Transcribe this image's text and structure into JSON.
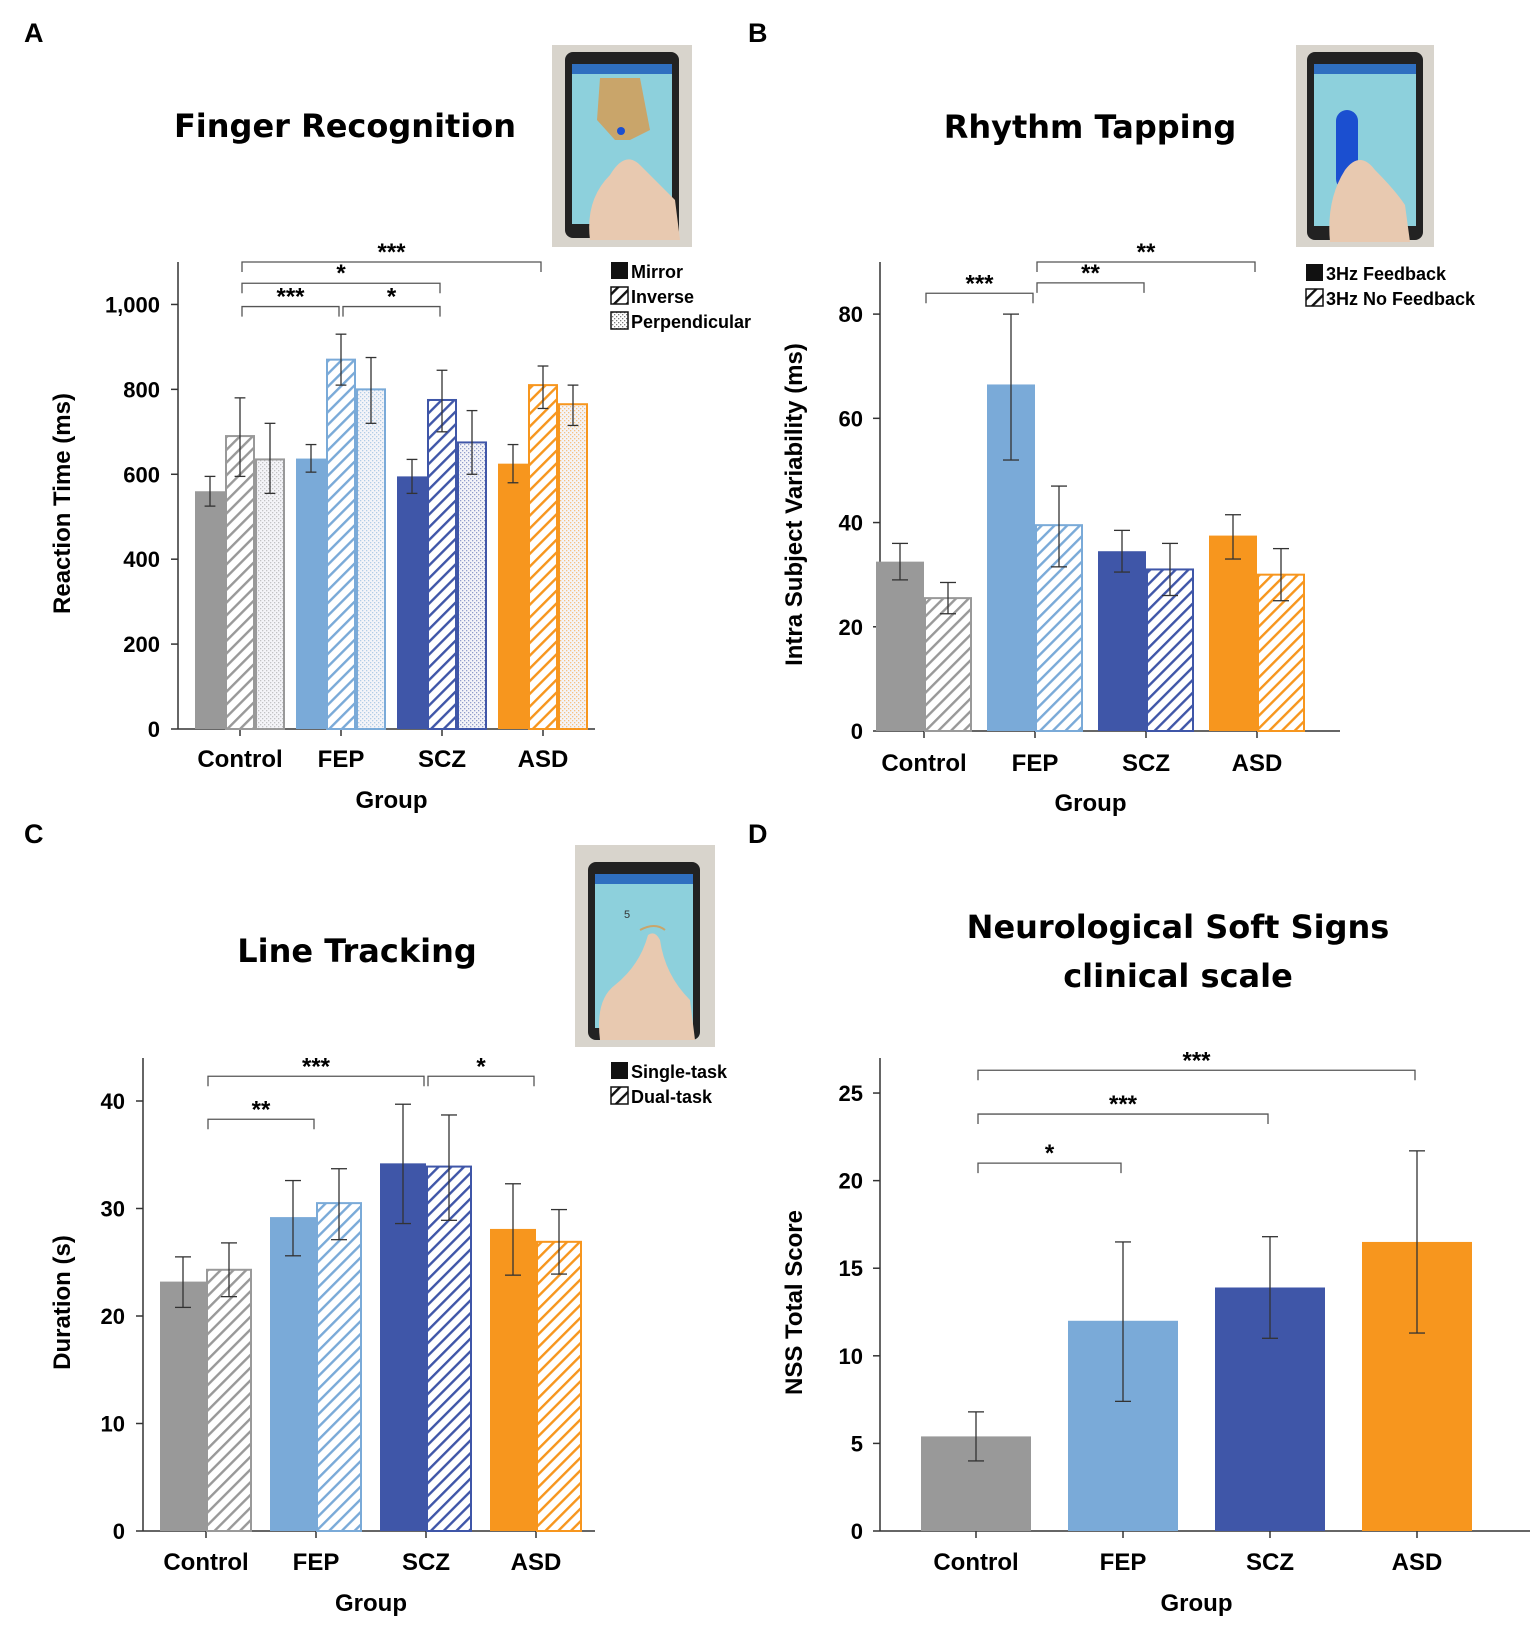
{
  "colors": {
    "Control": "#999999",
    "FEP": "#7aaad8",
    "SCZ": "#3f56a8",
    "ASD": "#f7961e"
  },
  "chart_data": [
    {
      "panel": "A",
      "type": "bar",
      "title": [
        "Finger Recognition"
      ],
      "xlabel": "Group",
      "ylabel": "Reaction Time (ms)",
      "ylim": [
        0,
        1100
      ],
      "yticks": [
        0,
        200,
        400,
        600,
        800,
        1000
      ],
      "ytick_labels": [
        "0",
        "200",
        "400",
        "600",
        "800",
        "1,000"
      ],
      "categories": [
        "Control",
        "FEP",
        "SCZ",
        "ASD"
      ],
      "series": [
        {
          "name": "Mirror",
          "pattern": "solid",
          "values": [
            560,
            637,
            595,
            625
          ],
          "err_low": [
            525,
            605,
            555,
            580
          ],
          "err_high": [
            595,
            670,
            635,
            670
          ]
        },
        {
          "name": "Inverse",
          "pattern": "hatch",
          "values": [
            690,
            870,
            775,
            810
          ],
          "err_low": [
            595,
            810,
            700,
            755
          ],
          "err_high": [
            780,
            930,
            845,
            855
          ]
        },
        {
          "name": "Perpendicular",
          "pattern": "dots",
          "values": [
            635,
            800,
            675,
            765
          ],
          "err_low": [
            555,
            720,
            600,
            715
          ],
          "err_high": [
            720,
            875,
            750,
            810
          ]
        }
      ],
      "significance": [
        {
          "label": "***",
          "from": 0,
          "to": 3,
          "y": 1100
        },
        {
          "label": "*",
          "from": 0,
          "to": 2,
          "y": 1050
        },
        {
          "label": "***",
          "from": 0,
          "to": 1,
          "y": 995
        },
        {
          "label": "*",
          "from": 1,
          "to": 2,
          "y": 995
        }
      ]
    },
    {
      "panel": "B",
      "type": "bar",
      "title": [
        "Rhythm Tapping"
      ],
      "xlabel": "Group",
      "ylabel": "Intra Subject Variability (ms)",
      "ylim": [
        0,
        90
      ],
      "yticks": [
        0,
        20,
        40,
        60,
        80
      ],
      "ytick_labels": [
        "0",
        "20",
        "40",
        "60",
        "80"
      ],
      "categories": [
        "Control",
        "FEP",
        "SCZ",
        "ASD"
      ],
      "series": [
        {
          "name": "3Hz Feedback",
          "pattern": "solid",
          "values": [
            32.5,
            66.5,
            34.5,
            37.5
          ],
          "err_low": [
            29,
            52,
            30.5,
            33
          ],
          "err_high": [
            36,
            80,
            38.5,
            41.5
          ]
        },
        {
          "name": "3Hz No Feedback",
          "pattern": "hatch",
          "values": [
            25.5,
            39.5,
            31,
            30
          ],
          "err_low": [
            22.5,
            31.5,
            26,
            25
          ],
          "err_high": [
            28.5,
            47,
            36,
            35
          ]
        }
      ],
      "significance": [
        {
          "label": "**",
          "from": 1,
          "to": 3,
          "y": 90
        },
        {
          "label": "***",
          "from": 0,
          "to": 1,
          "y": 84
        },
        {
          "label": "**",
          "from": 1,
          "to": 2,
          "y": 86
        }
      ]
    },
    {
      "panel": "C",
      "type": "bar",
      "title": [
        "Line Tracking"
      ],
      "xlabel": "Group",
      "ylabel": "Duration (s)",
      "ylim": [
        0,
        44
      ],
      "yticks": [
        0,
        10,
        20,
        30,
        40
      ],
      "ytick_labels": [
        "0",
        "10",
        "20",
        "30",
        "40"
      ],
      "categories": [
        "Control",
        "FEP",
        "SCZ",
        "ASD"
      ],
      "series": [
        {
          "name": "Single-task",
          "pattern": "solid",
          "values": [
            23.2,
            29.2,
            34.2,
            28.1
          ],
          "err_low": [
            20.8,
            25.6,
            28.6,
            23.8
          ],
          "err_high": [
            25.5,
            32.6,
            39.7,
            32.3
          ]
        },
        {
          "name": "Dual-task",
          "pattern": "hatch",
          "values": [
            24.3,
            30.5,
            33.9,
            26.9
          ],
          "err_low": [
            21.8,
            27.1,
            28.9,
            23.9
          ],
          "err_high": [
            26.8,
            33.7,
            38.7,
            29.9
          ]
        }
      ],
      "significance": [
        {
          "label": "***",
          "from": 0,
          "to": 2,
          "y": 42.3
        },
        {
          "label": "*",
          "from": 2,
          "to": 3,
          "y": 42.3
        },
        {
          "label": "**",
          "from": 0,
          "to": 1,
          "y": 38.3
        }
      ]
    },
    {
      "panel": "D",
      "type": "bar",
      "title": [
        "Neurological Soft Signs",
        "clinical scale"
      ],
      "xlabel": "Group",
      "ylabel": "NSS Total Score",
      "ylim": [
        0,
        27
      ],
      "yticks": [
        0,
        5,
        10,
        15,
        20,
        25
      ],
      "ytick_labels": [
        "0",
        "5",
        "10",
        "15",
        "20",
        "25"
      ],
      "categories": [
        "Control",
        "FEP",
        "SCZ",
        "ASD"
      ],
      "series": [
        {
          "name": "NSS",
          "pattern": "solid",
          "values": [
            5.4,
            12,
            13.9,
            16.5
          ],
          "err_low": [
            4,
            7.4,
            11,
            11.3
          ],
          "err_high": [
            6.8,
            16.5,
            16.8,
            21.7
          ]
        }
      ],
      "significance": [
        {
          "label": "***",
          "from": 0,
          "to": 3,
          "y": 26.3
        },
        {
          "label": "***",
          "from": 0,
          "to": 2,
          "y": 23.8
        },
        {
          "label": "*",
          "from": 0,
          "to": 1,
          "y": 21
        }
      ]
    }
  ]
}
